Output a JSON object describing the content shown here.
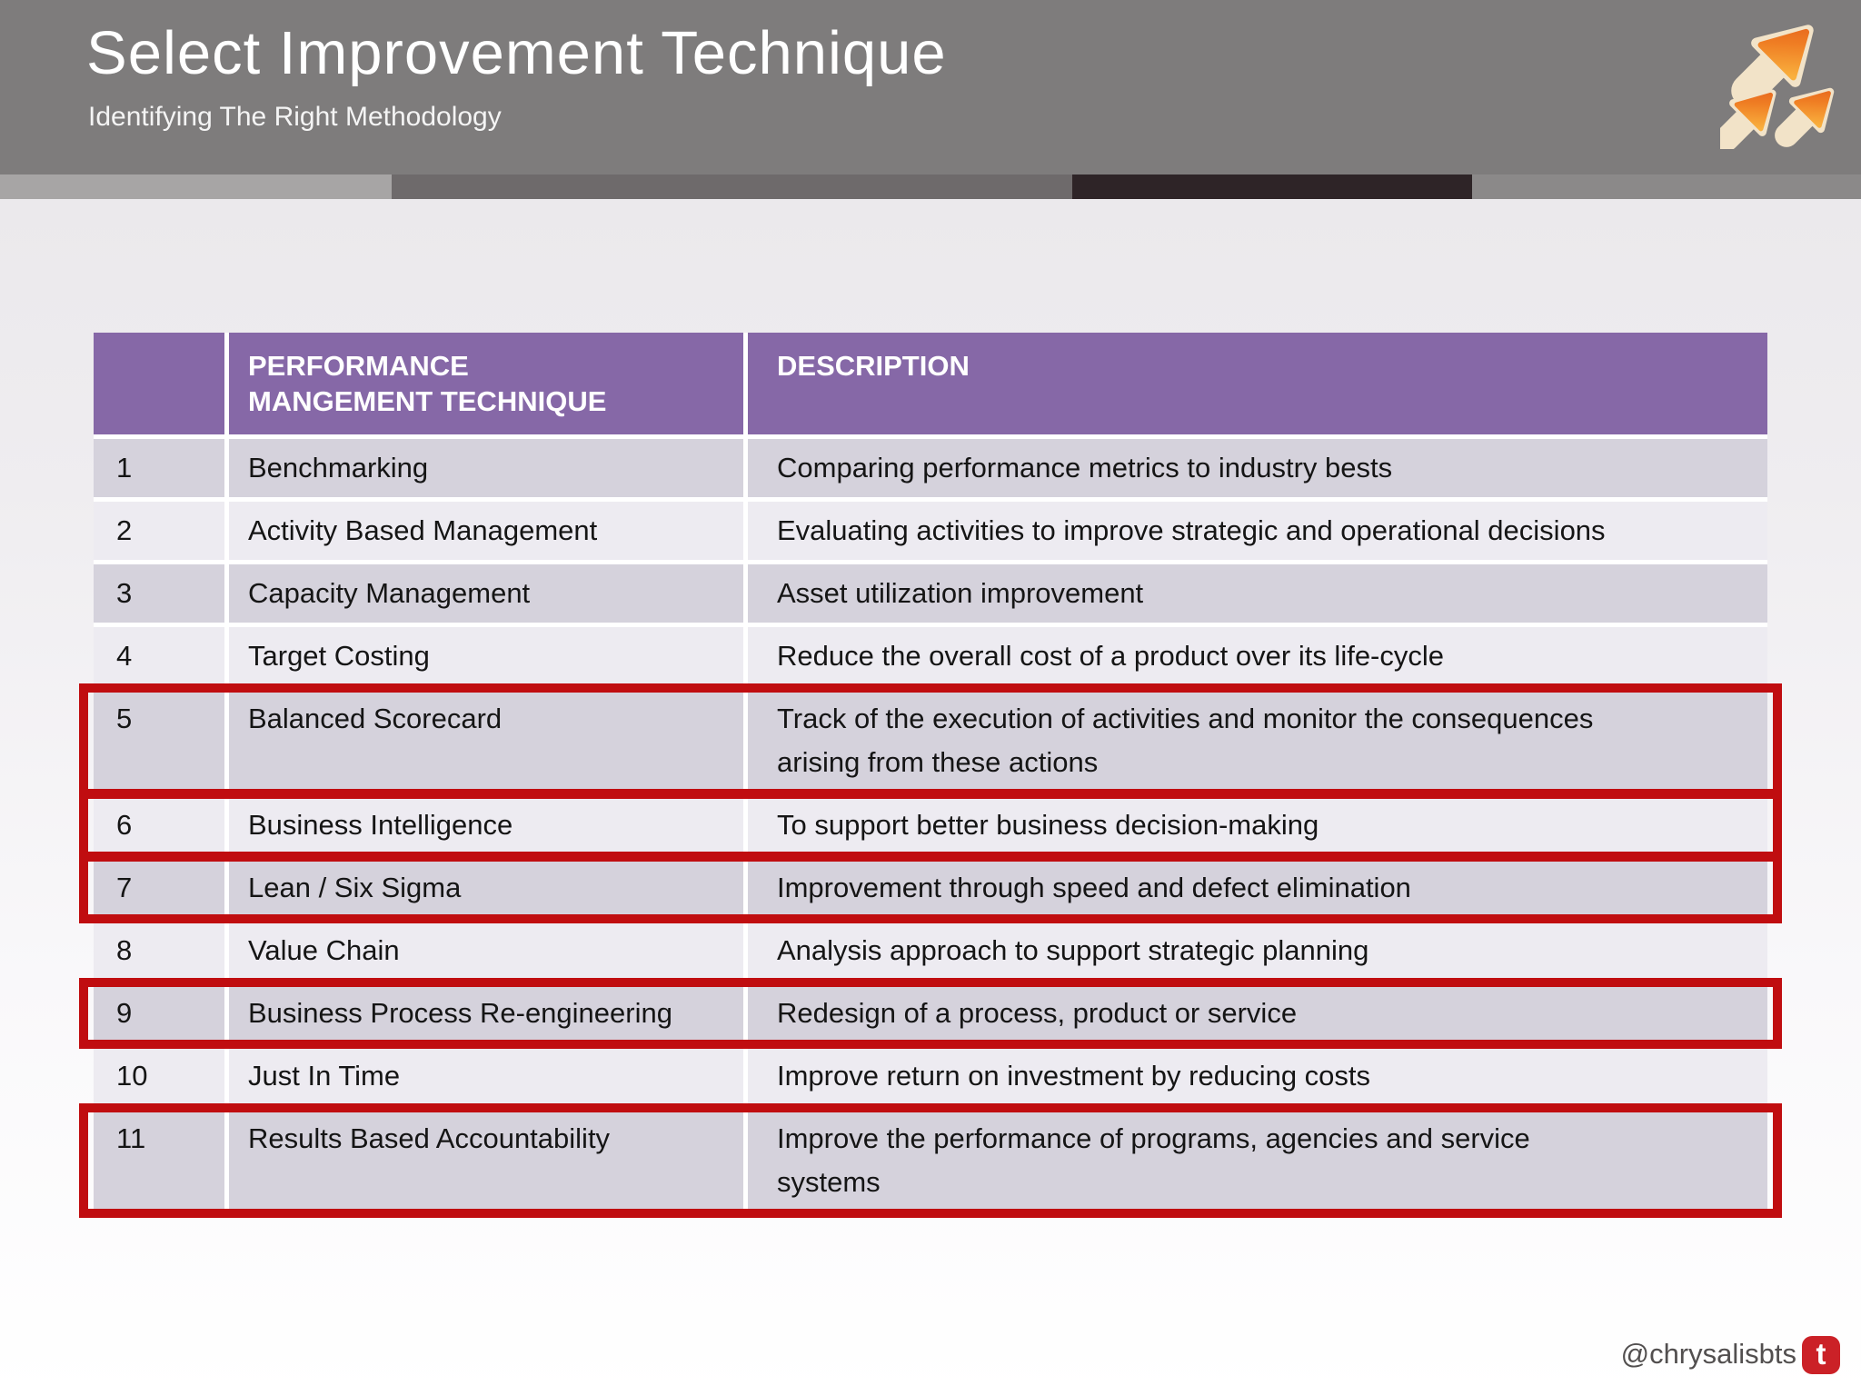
{
  "slide": {
    "title": "Select Improvement Technique",
    "subtitle": "Identifying The Right Methodology"
  },
  "table": {
    "headers": {
      "index": "",
      "technique": "PERFORMANCE\nMANGEMENT TECHNIQUE",
      "description": "DESCRIPTION"
    },
    "rows": [
      {
        "num": "1",
        "technique": "Benchmarking",
        "description": "Comparing performance metrics to industry bests",
        "highlighted": false
      },
      {
        "num": "2",
        "technique": "Activity Based Management",
        "description": "Evaluating activities to improve strategic and operational decisions",
        "highlighted": false
      },
      {
        "num": "3",
        "technique": "Capacity Management",
        "description": "Asset utilization improvement",
        "highlighted": false
      },
      {
        "num": "4",
        "technique": "Target Costing",
        "description": "Reduce the overall cost of a product over its life-cycle",
        "highlighted": false
      },
      {
        "num": "5",
        "technique": "Balanced Scorecard",
        "description": "Track of the execution of activities and monitor the consequences\narising from these actions",
        "highlighted": true
      },
      {
        "num": "6",
        "technique": "Business Intelligence",
        "description": "To support better business decision-making",
        "highlighted": true
      },
      {
        "num": "7",
        "technique": "Lean / Six Sigma",
        "description": "Improvement through speed and defect elimination",
        "highlighted": true
      },
      {
        "num": "8",
        "technique": "Value Chain",
        "description": "Analysis approach to support strategic planning",
        "highlighted": false
      },
      {
        "num": "9",
        "technique": "Business Process Re-engineering",
        "description": "Redesign of a process, product or service",
        "highlighted": true
      },
      {
        "num": "10",
        "technique": "Just In Time",
        "description": "Improve return on investment by reducing costs",
        "highlighted": false
      },
      {
        "num": "11",
        "technique": "Results Based Accountability",
        "description": "Improve the performance of programs, agencies and service\nsystems",
        "highlighted": true
      }
    ]
  },
  "footer": {
    "handle": "@chrysalisbts",
    "icon": "twitter-icon"
  },
  "colors": {
    "banner_gray": "#7e7c7c",
    "header_purple": "#8668a7",
    "row_odd": "#d5d2dc",
    "row_even": "#edebf1",
    "highlight_red": "#c00d10",
    "logo_orange_light": "#f8ab3a",
    "logo_orange_dark": "#e8611c",
    "footer_icon_red": "#cb2127"
  }
}
